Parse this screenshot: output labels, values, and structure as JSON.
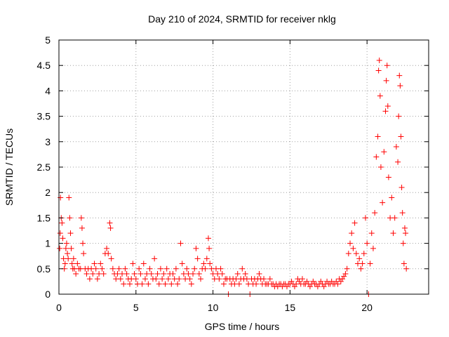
{
  "chart_data": {
    "type": "scatter",
    "title": "Day 210 of 2024, SRMTID for receiver nklg",
    "xlabel": "GPS time / hours",
    "ylabel": "SRMTID / TECUs",
    "xlim": [
      0,
      24
    ],
    "ylim": [
      0,
      5
    ],
    "xticks": [
      0,
      5,
      10,
      15,
      20
    ],
    "xtick_labels": [
      "0",
      "5",
      "10",
      "15",
      "20"
    ],
    "yticks": [
      0,
      0.5,
      1,
      1.5,
      2,
      2.5,
      3,
      3.5,
      4,
      4.5,
      5
    ],
    "ytick_labels": [
      "0",
      "0.5",
      "1",
      "1.5",
      "2",
      "2.5",
      "3",
      "3.5",
      "4",
      "4.5",
      "5"
    ],
    "grid": true,
    "marker": "+",
    "color": "#ff0000",
    "series": [
      {
        "name": "SRMTID",
        "points": [
          [
            0.05,
            0.9
          ],
          [
            0.08,
            1.2
          ],
          [
            0.1,
            1.9
          ],
          [
            0.15,
            1.5
          ],
          [
            0.2,
            1.4
          ],
          [
            0.25,
            1.1
          ],
          [
            0.3,
            0.7
          ],
          [
            0.35,
            0.5
          ],
          [
            0.4,
            0.6
          ],
          [
            0.45,
            0.9
          ],
          [
            0.5,
            1.0
          ],
          [
            0.55,
            0.8
          ],
          [
            0.6,
            0.7
          ],
          [
            0.65,
            1.9
          ],
          [
            0.7,
            1.5
          ],
          [
            0.75,
            1.2
          ],
          [
            0.8,
            0.9
          ],
          [
            0.85,
            0.6
          ],
          [
            0.9,
            0.5
          ],
          [
            0.95,
            0.7
          ],
          [
            1.0,
            0.5
          ],
          [
            1.1,
            0.4
          ],
          [
            1.2,
            0.6
          ],
          [
            1.3,
            0.5
          ],
          [
            1.4,
            0.5
          ],
          [
            1.45,
            1.5
          ],
          [
            1.5,
            1.3
          ],
          [
            1.55,
            1.0
          ],
          [
            1.6,
            0.8
          ],
          [
            1.7,
            0.5
          ],
          [
            1.8,
            0.4
          ],
          [
            1.9,
            0.5
          ],
          [
            2.0,
            0.3
          ],
          [
            2.1,
            0.5
          ],
          [
            2.2,
            0.4
          ],
          [
            2.3,
            0.6
          ],
          [
            2.4,
            0.5
          ],
          [
            2.5,
            0.3
          ],
          [
            2.6,
            0.4
          ],
          [
            2.7,
            0.6
          ],
          [
            2.8,
            0.5
          ],
          [
            2.9,
            0.4
          ],
          [
            3.0,
            0.8
          ],
          [
            3.1,
            0.9
          ],
          [
            3.2,
            0.8
          ],
          [
            3.3,
            1.4
          ],
          [
            3.35,
            1.3
          ],
          [
            3.4,
            0.7
          ],
          [
            3.5,
            0.5
          ],
          [
            3.6,
            0.4
          ],
          [
            3.7,
            0.3
          ],
          [
            3.8,
            0.4
          ],
          [
            3.9,
            0.5
          ],
          [
            4.0,
            0.3
          ],
          [
            4.1,
            0.4
          ],
          [
            4.2,
            0.2
          ],
          [
            4.3,
            0.5
          ],
          [
            4.4,
            0.4
          ],
          [
            4.5,
            0.3
          ],
          [
            4.6,
            0.2
          ],
          [
            4.7,
            0.3
          ],
          [
            4.8,
            0.6
          ],
          [
            4.9,
            0.4
          ],
          [
            5.0,
            0.3
          ],
          [
            5.1,
            0.2
          ],
          [
            5.2,
            0.5
          ],
          [
            5.3,
            0.4
          ],
          [
            5.4,
            0.2
          ],
          [
            5.5,
            0.6
          ],
          [
            5.6,
            0.3
          ],
          [
            5.7,
            0.4
          ],
          [
            5.8,
            0.2
          ],
          [
            5.9,
            0.5
          ],
          [
            6.0,
            0.4
          ],
          [
            6.1,
            0.3
          ],
          [
            6.2,
            0.7
          ],
          [
            6.3,
            0.3
          ],
          [
            6.4,
            0.4
          ],
          [
            6.5,
            0.2
          ],
          [
            6.6,
            0.5
          ],
          [
            6.7,
            0.3
          ],
          [
            6.8,
            0.4
          ],
          [
            6.9,
            0.2
          ],
          [
            7.0,
            0.5
          ],
          [
            7.1,
            0.3
          ],
          [
            7.2,
            0.4
          ],
          [
            7.3,
            0.2
          ],
          [
            7.4,
            0.4
          ],
          [
            7.5,
            0.3
          ],
          [
            7.6,
            0.5
          ],
          [
            7.7,
            0.2
          ],
          [
            7.8,
            0.3
          ],
          [
            7.9,
            1.0
          ],
          [
            8.0,
            0.6
          ],
          [
            8.1,
            0.4
          ],
          [
            8.2,
            0.3
          ],
          [
            8.3,
            0.5
          ],
          [
            8.4,
            0.4
          ],
          [
            8.5,
            0.3
          ],
          [
            8.6,
            0.2
          ],
          [
            8.7,
            0.4
          ],
          [
            8.8,
            0.5
          ],
          [
            8.9,
            0.9
          ],
          [
            9.0,
            0.7
          ],
          [
            9.1,
            0.4
          ],
          [
            9.2,
            0.3
          ],
          [
            9.3,
            0.5
          ],
          [
            9.4,
            0.6
          ],
          [
            9.5,
            0.5
          ],
          [
            9.6,
            0.7
          ],
          [
            9.7,
            1.1
          ],
          [
            9.75,
            0.9
          ],
          [
            9.8,
            0.6
          ],
          [
            9.9,
            0.5
          ],
          [
            10.0,
            0.4
          ],
          [
            10.1,
            0.3
          ],
          [
            10.2,
            0.5
          ],
          [
            10.3,
            0.4
          ],
          [
            10.4,
            0.3
          ],
          [
            10.5,
            0.5
          ],
          [
            10.6,
            0.4
          ],
          [
            10.7,
            0.2
          ],
          [
            10.8,
            0.3
          ],
          [
            10.9,
            0.3
          ],
          [
            11.0,
            0.0
          ],
          [
            11.1,
            0.3
          ],
          [
            11.2,
            0.2
          ],
          [
            11.3,
            0.3
          ],
          [
            11.4,
            0.2
          ],
          [
            11.5,
            0.3
          ],
          [
            11.6,
            0.4
          ],
          [
            11.7,
            0.2
          ],
          [
            11.8,
            0.3
          ],
          [
            11.9,
            0.5
          ],
          [
            12.0,
            0.3
          ],
          [
            12.1,
            0.4
          ],
          [
            12.2,
            0.3
          ],
          [
            12.3,
            0.2
          ],
          [
            12.4,
            0.0
          ],
          [
            12.5,
            0.3
          ],
          [
            12.6,
            0.2
          ],
          [
            12.7,
            0.3
          ],
          [
            12.8,
            0.2
          ],
          [
            12.9,
            0.3
          ],
          [
            13.0,
            0.4
          ],
          [
            13.1,
            0.3
          ],
          [
            13.2,
            0.2
          ],
          [
            13.3,
            0.3
          ],
          [
            13.4,
            0.2
          ],
          [
            13.5,
            0.2
          ],
          [
            13.6,
            0.2
          ],
          [
            13.7,
            0.3
          ],
          [
            13.8,
            0.2
          ],
          [
            13.9,
            0.2
          ],
          [
            14.0,
            0.15
          ],
          [
            14.1,
            0.2
          ],
          [
            14.2,
            0.15
          ],
          [
            14.3,
            0.2
          ],
          [
            14.4,
            0.2
          ],
          [
            14.5,
            0.15
          ],
          [
            14.6,
            0.2
          ],
          [
            14.7,
            0.2
          ],
          [
            14.8,
            0.15
          ],
          [
            14.9,
            0.2
          ],
          [
            15.0,
            0.2
          ],
          [
            15.1,
            0.25
          ],
          [
            15.2,
            0.2
          ],
          [
            15.3,
            0.15
          ],
          [
            15.4,
            0.2
          ],
          [
            15.5,
            0.3
          ],
          [
            15.6,
            0.25
          ],
          [
            15.7,
            0.2
          ],
          [
            15.8,
            0.3
          ],
          [
            15.9,
            0.2
          ],
          [
            16.0,
            0.2
          ],
          [
            16.1,
            0.25
          ],
          [
            16.2,
            0.2
          ],
          [
            16.3,
            0.15
          ],
          [
            16.4,
            0.2
          ],
          [
            16.5,
            0.25
          ],
          [
            16.6,
            0.2
          ],
          [
            16.7,
            0.2
          ],
          [
            16.8,
            0.15
          ],
          [
            16.9,
            0.2
          ],
          [
            17.0,
            0.25
          ],
          [
            17.1,
            0.2
          ],
          [
            17.2,
            0.15
          ],
          [
            17.3,
            0.2
          ],
          [
            17.4,
            0.25
          ],
          [
            17.5,
            0.2
          ],
          [
            17.6,
            0.2
          ],
          [
            17.7,
            0.25
          ],
          [
            17.8,
            0.2
          ],
          [
            17.9,
            0.2
          ],
          [
            18.0,
            0.25
          ],
          [
            18.1,
            0.2
          ],
          [
            18.2,
            0.3
          ],
          [
            18.3,
            0.25
          ],
          [
            18.4,
            0.3
          ],
          [
            18.5,
            0.35
          ],
          [
            18.6,
            0.4
          ],
          [
            18.7,
            0.5
          ],
          [
            18.8,
            0.8
          ],
          [
            18.9,
            1.0
          ],
          [
            19.0,
            1.2
          ],
          [
            19.1,
            0.9
          ],
          [
            19.2,
            1.4
          ],
          [
            19.3,
            0.8
          ],
          [
            19.4,
            0.6
          ],
          [
            19.5,
            0.7
          ],
          [
            19.6,
            0.5
          ],
          [
            19.7,
            0.6
          ],
          [
            19.8,
            0.8
          ],
          [
            19.9,
            1.5
          ],
          [
            20.0,
            1.0
          ],
          [
            20.1,
            0.0
          ],
          [
            20.2,
            0.6
          ],
          [
            20.3,
            1.2
          ],
          [
            20.4,
            0.9
          ],
          [
            20.5,
            1.6
          ],
          [
            20.6,
            2.7
          ],
          [
            20.7,
            3.1
          ],
          [
            20.75,
            4.4
          ],
          [
            20.8,
            4.6
          ],
          [
            20.85,
            3.9
          ],
          [
            20.9,
            2.5
          ],
          [
            21.0,
            1.8
          ],
          [
            21.1,
            2.8
          ],
          [
            21.2,
            3.6
          ],
          [
            21.25,
            4.2
          ],
          [
            21.3,
            4.5
          ],
          [
            21.35,
            3.7
          ],
          [
            21.4,
            2.3
          ],
          [
            21.5,
            1.5
          ],
          [
            21.6,
            1.9
          ],
          [
            21.7,
            1.2
          ],
          [
            21.8,
            1.5
          ],
          [
            21.9,
            2.9
          ],
          [
            22.0,
            2.6
          ],
          [
            22.05,
            3.5
          ],
          [
            22.1,
            4.3
          ],
          [
            22.15,
            4.1
          ],
          [
            22.2,
            3.1
          ],
          [
            22.25,
            2.1
          ],
          [
            22.3,
            1.6
          ],
          [
            22.35,
            1.0
          ],
          [
            22.4,
            0.6
          ],
          [
            22.45,
            1.3
          ],
          [
            22.5,
            1.2
          ],
          [
            22.55,
            0.5
          ]
        ]
      }
    ]
  }
}
